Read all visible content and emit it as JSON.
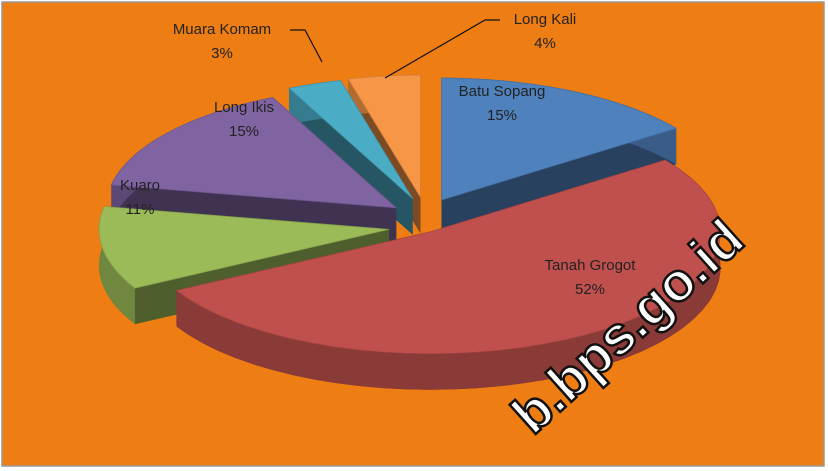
{
  "chart_data": {
    "type": "pie",
    "categories": [
      "Batu Sopang",
      "Tanah Grogot",
      "Kuaro",
      "Long Ikis",
      "Muara Komam",
      "Long Kali"
    ],
    "values": [
      15,
      52,
      11,
      15,
      3,
      4
    ],
    "value_labels": [
      "15%",
      "52%",
      "11%",
      "15%",
      "3%",
      "4%"
    ],
    "colors": [
      "#4f81bd",
      "#c0504d",
      "#9bbb59",
      "#8064a2",
      "#4bacc6",
      "#f79646"
    ],
    "background": "#ee7d13",
    "watermark": "b.bps.go.id"
  }
}
